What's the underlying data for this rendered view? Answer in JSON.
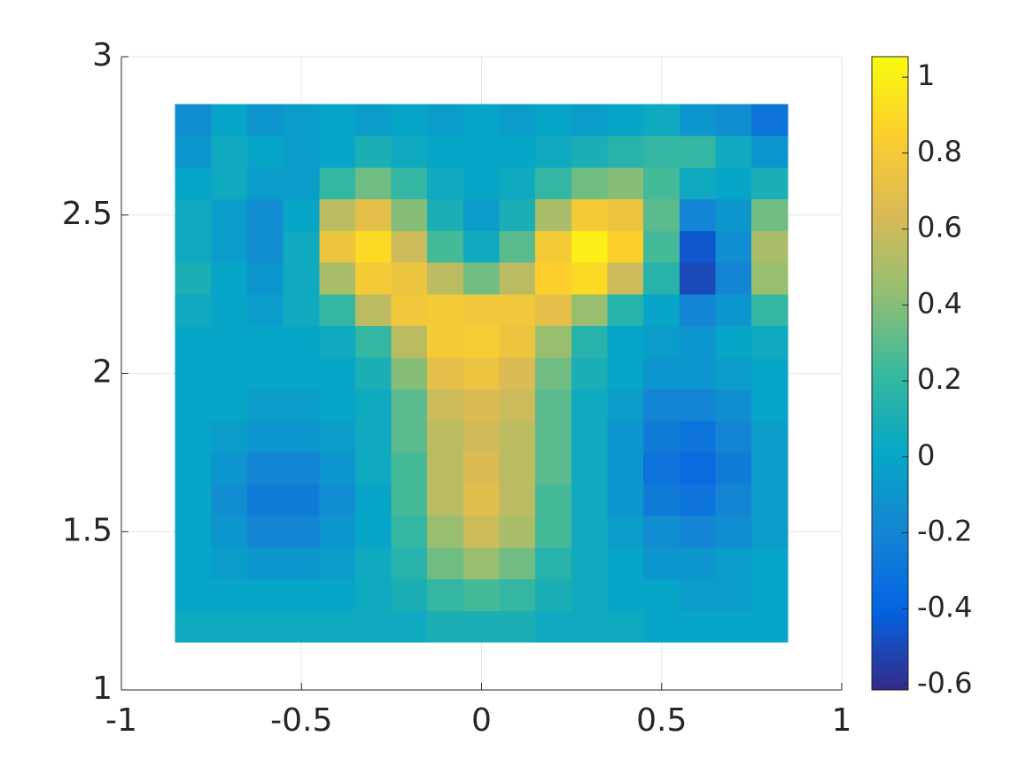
{
  "chart_data": {
    "type": "heatmap",
    "x": [
      -0.8,
      -0.7,
      -0.6,
      -0.5,
      -0.4,
      -0.3,
      -0.2,
      -0.1,
      0,
      0.1,
      0.2,
      0.3,
      0.4,
      0.5,
      0.6,
      0.7,
      0.8
    ],
    "y": [
      1.2,
      1.3,
      1.4,
      1.5,
      1.6,
      1.7,
      1.8,
      1.9,
      2.0,
      2.1,
      2.2,
      2.3,
      2.4,
      2.5,
      2.6,
      2.7,
      2.8
    ],
    "z": [
      [
        0.05,
        0.05,
        0.05,
        0.05,
        0.05,
        0.05,
        0.05,
        0.1,
        0.1,
        0.1,
        0.05,
        0.05,
        0.05,
        0,
        0,
        0,
        0
      ],
      [
        0,
        0,
        0,
        0,
        0,
        0.05,
        0.1,
        0.2,
        0.25,
        0.2,
        0.1,
        0.05,
        0,
        0,
        -0.05,
        -0.05,
        0
      ],
      [
        0,
        -0.05,
        -0.1,
        -0.1,
        -0.05,
        0.05,
        0.15,
        0.35,
        0.45,
        0.35,
        0.15,
        0.05,
        0,
        -0.1,
        -0.1,
        -0.05,
        0
      ],
      [
        0,
        -0.1,
        -0.2,
        -0.2,
        -0.1,
        0,
        0.2,
        0.45,
        0.6,
        0.5,
        0.25,
        0.05,
        -0.05,
        -0.15,
        -0.2,
        -0.15,
        -0.05
      ],
      [
        0,
        -0.15,
        -0.25,
        -0.25,
        -0.15,
        0,
        0.25,
        0.55,
        0.68,
        0.55,
        0.25,
        0.05,
        -0.1,
        -0.25,
        -0.3,
        -0.2,
        -0.05
      ],
      [
        0,
        -0.1,
        -0.2,
        -0.2,
        -0.1,
        0.05,
        0.25,
        0.55,
        0.65,
        0.55,
        0.3,
        0.05,
        -0.1,
        -0.3,
        -0.35,
        -0.25,
        -0.05
      ],
      [
        0,
        -0.05,
        -0.1,
        -0.1,
        -0.05,
        0.05,
        0.3,
        0.55,
        0.62,
        0.55,
        0.3,
        0.05,
        -0.1,
        -0.25,
        -0.3,
        -0.2,
        -0.05
      ],
      [
        0,
        0,
        -0.05,
        -0.05,
        0,
        0.05,
        0.3,
        0.6,
        0.65,
        0.6,
        0.3,
        0.05,
        -0.05,
        -0.2,
        -0.2,
        -0.15,
        0
      ],
      [
        0,
        0,
        0,
        0,
        0,
        0.1,
        0.4,
        0.7,
        0.75,
        0.65,
        0.35,
        0.1,
        0,
        -0.1,
        -0.1,
        -0.05,
        0
      ],
      [
        0,
        0,
        0,
        0,
        0.05,
        0.2,
        0.55,
        0.8,
        0.82,
        0.75,
        0.45,
        0.15,
        0,
        -0.05,
        -0.1,
        0,
        0.05
      ],
      [
        0.05,
        0,
        -0.05,
        0.05,
        0.2,
        0.55,
        0.78,
        0.8,
        0.78,
        0.78,
        0.7,
        0.45,
        0.15,
        0,
        -0.2,
        -0.1,
        0.2
      ],
      [
        0.1,
        0,
        -0.1,
        0.05,
        0.5,
        0.8,
        0.75,
        0.55,
        0.35,
        0.55,
        0.85,
        0.9,
        0.6,
        0.15,
        -0.5,
        -0.2,
        0.45
      ],
      [
        0.05,
        -0.05,
        -0.15,
        0.05,
        0.75,
        0.9,
        0.6,
        0.25,
        0.05,
        0.3,
        0.8,
        1.0,
        0.85,
        0.25,
        -0.45,
        -0.15,
        0.5
      ],
      [
        0.05,
        -0.05,
        -0.15,
        0,
        0.55,
        0.7,
        0.4,
        0.1,
        -0.05,
        0.1,
        0.5,
        0.8,
        0.75,
        0.3,
        -0.2,
        -0.1,
        0.35
      ],
      [
        0,
        0.05,
        -0.05,
        -0.05,
        0.2,
        0.35,
        0.2,
        0.05,
        0,
        0.05,
        0.2,
        0.35,
        0.4,
        0.25,
        0.05,
        0,
        0.1
      ],
      [
        -0.1,
        0.05,
        0,
        -0.05,
        0,
        0.1,
        0.05,
        0,
        0,
        0,
        0.05,
        0.1,
        0.15,
        0.2,
        0.2,
        0.05,
        -0.1
      ],
      [
        -0.15,
        0,
        -0.1,
        -0.05,
        0,
        -0.05,
        0,
        -0.05,
        0,
        -0.05,
        0,
        -0.05,
        0,
        0.05,
        -0.1,
        -0.15,
        -0.3
      ]
    ],
    "xlim": [
      -1,
      1
    ],
    "ylim": [
      1,
      3
    ],
    "xticks": [
      -1,
      -0.5,
      0,
      0.5,
      1
    ],
    "yticks": [
      1,
      1.5,
      2,
      2.5,
      3
    ],
    "grid": true,
    "clim": [
      -0.614,
      1.054
    ],
    "cticks": [
      -0.6,
      -0.4,
      -0.2,
      0,
      0.2,
      0.4,
      0.6,
      0.8,
      1
    ],
    "colormap": [
      "#352a87",
      "#0363e1",
      "#1485d4",
      "#06a7c6",
      "#38b99e",
      "#92bf73",
      "#d9ba56",
      "#fcce2e",
      "#f9fb0e"
    ]
  }
}
